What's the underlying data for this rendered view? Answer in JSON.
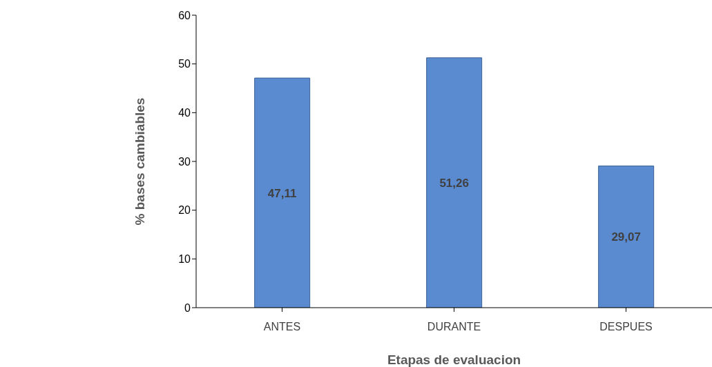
{
  "chart_data": {
    "type": "bar",
    "xlabel": "Etapas de evaluacion",
    "ylabel": "% bases cambiables",
    "categories": [
      "ANTES",
      "DURANTE",
      "DESPUES"
    ],
    "values": [
      47.11,
      51.26,
      29.07
    ],
    "value_labels": [
      "47,11",
      "51,26",
      "29,07"
    ],
    "color": "#5a8bd0",
    "ylim": [
      0,
      60
    ],
    "yticks": [
      0,
      10,
      20,
      30,
      40,
      50,
      60
    ],
    "grid": false,
    "legend": false
  }
}
